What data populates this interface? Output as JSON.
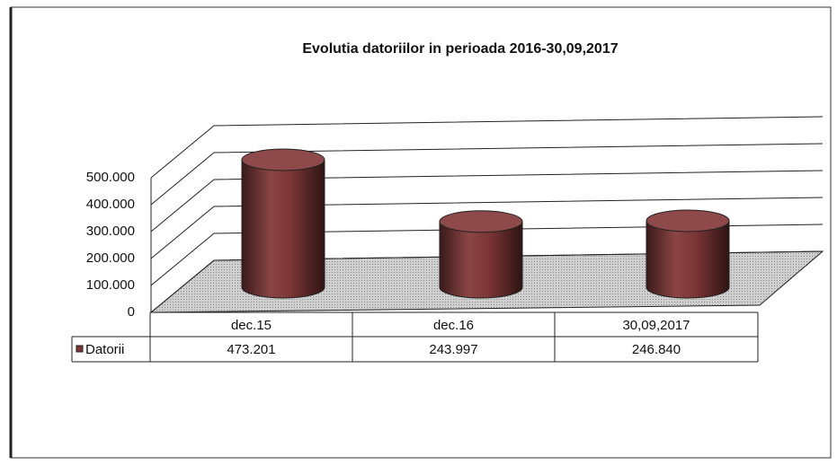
{
  "chart_data": {
    "type": "bar",
    "title": "Evolutia datoriilor in perioada 2016-30,09,2017",
    "categories": [
      "dec.15",
      "dec.16",
      "30,09,2017"
    ],
    "series": [
      {
        "name": "Datorii",
        "color": "#7a3535",
        "values": [
          473201,
          243997,
          246840
        ],
        "value_labels": [
          "473.201",
          "243.997",
          "246.840"
        ]
      }
    ],
    "ylim": [
      0,
      500000
    ],
    "yticks": [
      {
        "value": 0,
        "label": "0"
      },
      {
        "value": 100000,
        "label": "100.000"
      },
      {
        "value": 200000,
        "label": "200.000"
      },
      {
        "value": 300000,
        "label": "300.000"
      },
      {
        "value": 400000,
        "label": "400.000"
      },
      {
        "value": 500000,
        "label": "500.000"
      }
    ],
    "grid": true
  }
}
